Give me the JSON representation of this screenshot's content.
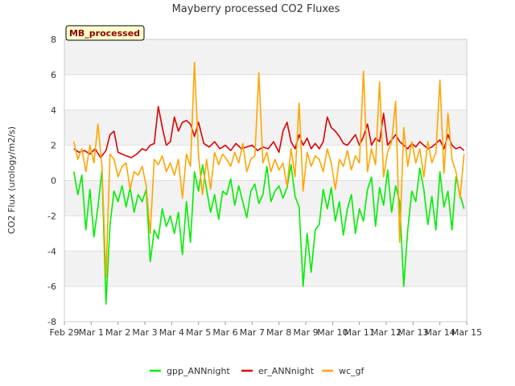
{
  "chart_data": {
    "type": "line",
    "title": "Mayberry processed CO2 Fluxes",
    "ylabel": "CO2 Flux (urology/m2/s)",
    "xlabel": "",
    "tag": "MB_processed",
    "ylim": [
      -8,
      8
    ],
    "yticks": [
      -8,
      -6,
      -4,
      -2,
      0,
      2,
      4,
      6,
      8
    ],
    "xlim": [
      0,
      15
    ],
    "xticks": [
      {
        "pos": 0,
        "label": "Feb 29"
      },
      {
        "pos": 1,
        "label": "Mar 1"
      },
      {
        "pos": 2,
        "label": "Mar 2"
      },
      {
        "pos": 3,
        "label": "Mar 3"
      },
      {
        "pos": 4,
        "label": "Mar 4"
      },
      {
        "pos": 5,
        "label": "Mar 5"
      },
      {
        "pos": 6,
        "label": "Mar 6"
      },
      {
        "pos": 7,
        "label": "Mar 7"
      },
      {
        "pos": 8,
        "label": "Mar 8"
      },
      {
        "pos": 9,
        "label": "Mar 9"
      },
      {
        "pos": 10,
        "label": "Mar 10"
      },
      {
        "pos": 11,
        "label": "Mar 11"
      },
      {
        "pos": 12,
        "label": "Mar 12"
      },
      {
        "pos": 13,
        "label": "Mar 13"
      },
      {
        "pos": 14,
        "label": "Mar 14"
      },
      {
        "pos": 15,
        "label": "Mar 15"
      }
    ],
    "series": [
      {
        "name": "gpp_ANNnight",
        "color": "#00ee00",
        "x": [
          0.35,
          0.5,
          0.65,
          0.8,
          0.95,
          1.1,
          1.25,
          1.4,
          1.55,
          1.7,
          1.85,
          2.0,
          2.15,
          2.3,
          2.45,
          2.6,
          2.75,
          2.9,
          3.05,
          3.2,
          3.35,
          3.5,
          3.65,
          3.8,
          3.95,
          4.1,
          4.25,
          4.4,
          4.55,
          4.7,
          4.85,
          5.0,
          5.15,
          5.3,
          5.45,
          5.6,
          5.75,
          5.9,
          6.05,
          6.2,
          6.35,
          6.5,
          6.65,
          6.8,
          6.95,
          7.1,
          7.25,
          7.4,
          7.55,
          7.7,
          7.85,
          8.0,
          8.15,
          8.3,
          8.45,
          8.6,
          8.75,
          8.9,
          9.05,
          9.2,
          9.35,
          9.5,
          9.65,
          9.8,
          9.95,
          10.1,
          10.25,
          10.4,
          10.55,
          10.7,
          10.85,
          11.0,
          11.15,
          11.3,
          11.45,
          11.6,
          11.75,
          11.9,
          12.05,
          12.2,
          12.35,
          12.5,
          12.65,
          12.8,
          12.95,
          13.1,
          13.25,
          13.4,
          13.55,
          13.7,
          13.85,
          14.0,
          14.15,
          14.3,
          14.45,
          14.6,
          14.75,
          14.9
        ],
        "y": [
          0.5,
          -0.8,
          0.3,
          -2.8,
          -0.5,
          -3.2,
          -1.5,
          0.6,
          -7.0,
          -2.5,
          -0.6,
          -1.2,
          -0.3,
          -1.5,
          -0.4,
          -1.8,
          -0.8,
          -1.2,
          -0.5,
          -4.6,
          -2.8,
          -3.3,
          -1.6,
          -2.6,
          -2.0,
          -3.0,
          -1.8,
          -4.2,
          -1.2,
          -3.5,
          0.5,
          -0.6,
          0.9,
          -0.5,
          -1.8,
          -0.8,
          -2.2,
          -0.6,
          -0.8,
          0.1,
          -1.4,
          -0.3,
          -1.2,
          -2.1,
          -0.6,
          -0.2,
          -1.3,
          -0.8,
          0.8,
          -1.2,
          -0.6,
          -0.3,
          -1.0,
          -0.4,
          0.9,
          -0.9,
          -1.5,
          -6.0,
          -3.0,
          -5.2,
          -2.8,
          -2.5,
          -0.5,
          -1.6,
          -0.4,
          -2.3,
          -1.2,
          -3.1,
          -1.6,
          -0.8,
          -3.0,
          -1.6,
          -2.3,
          -0.5,
          0.2,
          -2.6,
          -0.4,
          -1.4,
          0.6,
          -1.8,
          -0.3,
          -1.2,
          -6.0,
          -2.8,
          -0.6,
          -1.2,
          0.7,
          -0.5,
          -2.5,
          -0.9,
          -2.8,
          0.5,
          -1.5,
          -0.6,
          -2.8,
          0.2,
          -0.8,
          -1.6
        ]
      },
      {
        "name": "er_ANNnight",
        "color": "#dd0000",
        "x": [
          0.35,
          0.55,
          0.75,
          0.95,
          1.15,
          1.35,
          1.55,
          1.7,
          1.85,
          2.0,
          2.15,
          2.3,
          2.5,
          2.7,
          2.9,
          3.05,
          3.2,
          3.35,
          3.5,
          3.65,
          3.8,
          3.95,
          4.1,
          4.25,
          4.4,
          4.55,
          4.7,
          4.85,
          5.0,
          5.2,
          5.4,
          5.6,
          5.8,
          6.0,
          6.2,
          6.4,
          6.6,
          6.8,
          7.0,
          7.2,
          7.4,
          7.6,
          7.8,
          8.0,
          8.15,
          8.3,
          8.45,
          8.6,
          8.75,
          8.9,
          9.05,
          9.2,
          9.35,
          9.5,
          9.65,
          9.8,
          9.95,
          10.1,
          10.25,
          10.4,
          10.55,
          10.7,
          10.85,
          11.0,
          11.15,
          11.3,
          11.45,
          11.6,
          11.75,
          11.9,
          12.05,
          12.2,
          12.35,
          12.5,
          12.65,
          12.8,
          12.95,
          13.1,
          13.25,
          13.4,
          13.55,
          13.7,
          13.85,
          14.0,
          14.15,
          14.3,
          14.45,
          14.6,
          14.75,
          14.9
        ],
        "y": [
          1.8,
          1.6,
          1.7,
          1.5,
          1.8,
          1.3,
          1.7,
          2.6,
          2.8,
          1.6,
          1.5,
          1.4,
          1.3,
          1.5,
          1.8,
          1.7,
          2.0,
          2.1,
          4.2,
          3.0,
          2.0,
          2.2,
          3.6,
          2.8,
          3.3,
          3.4,
          3.2,
          2.5,
          3.3,
          2.1,
          1.9,
          2.2,
          1.8,
          2.0,
          1.7,
          2.1,
          1.8,
          1.9,
          2.0,
          1.7,
          1.9,
          1.8,
          2.2,
          1.6,
          2.8,
          3.3,
          2.2,
          1.8,
          2.6,
          2.0,
          2.4,
          1.8,
          2.1,
          1.8,
          2.2,
          3.6,
          3.0,
          2.8,
          2.5,
          2.1,
          2.0,
          2.3,
          2.6,
          2.0,
          2.5,
          3.2,
          2.0,
          2.4,
          2.2,
          3.8,
          2.0,
          2.3,
          2.6,
          2.2,
          2.0,
          1.8,
          2.1,
          1.9,
          2.2,
          2.0,
          1.8,
          1.9,
          2.1,
          2.3,
          1.8,
          2.6,
          2.0,
          1.8,
          1.9,
          1.7
        ]
      },
      {
        "name": "wc_gf",
        "color": "#ffa500",
        "x": [
          0.35,
          0.5,
          0.65,
          0.8,
          0.95,
          1.1,
          1.25,
          1.4,
          1.55,
          1.7,
          1.85,
          2.0,
          2.15,
          2.3,
          2.45,
          2.6,
          2.75,
          2.9,
          3.05,
          3.2,
          3.35,
          3.5,
          3.65,
          3.8,
          3.95,
          4.1,
          4.25,
          4.4,
          4.55,
          4.7,
          4.85,
          5.0,
          5.15,
          5.3,
          5.45,
          5.6,
          5.75,
          5.9,
          6.05,
          6.2,
          6.35,
          6.5,
          6.65,
          6.8,
          6.95,
          7.1,
          7.25,
          7.4,
          7.55,
          7.7,
          7.85,
          8.0,
          8.15,
          8.3,
          8.45,
          8.6,
          8.75,
          8.9,
          9.05,
          9.2,
          9.35,
          9.5,
          9.65,
          9.8,
          9.95,
          10.1,
          10.25,
          10.4,
          10.55,
          10.7,
          10.85,
          11.0,
          11.15,
          11.3,
          11.45,
          11.6,
          11.75,
          11.9,
          12.05,
          12.2,
          12.35,
          12.5,
          12.65,
          12.8,
          12.95,
          13.1,
          13.25,
          13.4,
          13.55,
          13.7,
          13.85,
          14.0,
          14.15,
          14.3,
          14.45,
          14.6,
          14.75,
          14.9
        ],
        "y": [
          2.2,
          1.2,
          1.8,
          0.5,
          2.0,
          1.0,
          3.2,
          0.8,
          -5.5,
          1.5,
          1.2,
          0.2,
          0.8,
          1.0,
          -0.5,
          0.5,
          0.3,
          0.8,
          -0.3,
          -3.0,
          1.2,
          0.9,
          1.4,
          0.5,
          1.0,
          0.3,
          1.2,
          -1.0,
          1.5,
          0.8,
          6.7,
          1.4,
          -0.8,
          1.2,
          -0.5,
          1.6,
          0.9,
          1.5,
          1.2,
          0.8,
          1.6,
          1.0,
          2.1,
          0.5,
          1.2,
          1.4,
          6.1,
          1.0,
          1.6,
          0.5,
          1.2,
          0.6,
          1.0,
          -0.3,
          1.8,
          0.2,
          4.4,
          -0.6,
          1.6,
          0.8,
          1.4,
          1.2,
          0.5,
          1.8,
          1.0,
          -0.5,
          1.2,
          0.8,
          1.7,
          0.6,
          1.4,
          1.0,
          6.2,
          0.5,
          1.8,
          0.9,
          5.6,
          0.2,
          1.6,
          2.2,
          4.5,
          -3.5,
          3.0,
          0.8,
          2.2,
          1.0,
          1.8,
          0.2,
          2.2,
          1.0,
          1.6,
          5.7,
          0.4,
          3.8,
          1.2,
          0.5,
          -1.0,
          1.5
        ]
      }
    ]
  }
}
